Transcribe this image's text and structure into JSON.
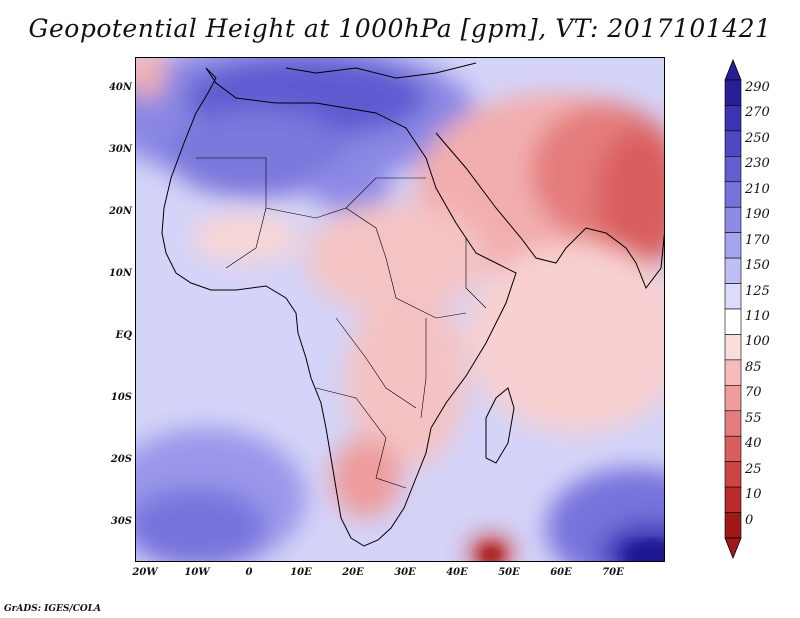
{
  "title": "Geopotential Height at 1000hPa [gpm], VT: 2017101421",
  "credit": "GrADS: IGES/COLA",
  "lat_labels": [
    "40N",
    "30N",
    "20N",
    "10N",
    "EQ",
    "10S",
    "20S",
    "30S"
  ],
  "lon_labels": [
    "20W",
    "10W",
    "0",
    "10E",
    "20E",
    "30E",
    "40E",
    "50E",
    "60E",
    "70E"
  ],
  "colorbar": {
    "levels": [
      "290",
      "270",
      "250",
      "230",
      "210",
      "190",
      "170",
      "150",
      "125",
      "110",
      "100",
      "85",
      "70",
      "55",
      "40",
      "25",
      "10",
      "0"
    ],
    "colors": [
      "#2a1e98",
      "#3a34b4",
      "#4e48c4",
      "#625ed2",
      "#7773dc",
      "#8e8be6",
      "#a6a4ee",
      "#c0bff5",
      "#dcdcfa",
      "#ffffff",
      "#fbdcdc",
      "#f6bcbc",
      "#ee9c9c",
      "#e47c7c",
      "#d95f5f",
      "#cc4444",
      "#bb2a2a",
      "#a01818"
    ]
  }
}
